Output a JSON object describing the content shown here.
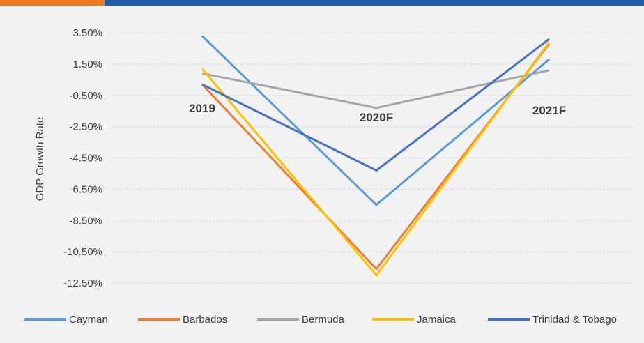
{
  "colors": {
    "accent_bar": "#f07c22",
    "main_bar": "#1e5fa8",
    "grid": "#d9d9d9"
  },
  "chart_data": {
    "type": "line",
    "ylabel": "GDP Growth Rate",
    "categories": [
      "2019",
      "2020F",
      "2021F"
    ],
    "ylim": [
      -12.5,
      3.5
    ],
    "yticks": [
      "3.50%",
      "1.50%",
      "-0.50%",
      "-2.50%",
      "-4.50%",
      "-6.50%",
      "-8.50%",
      "-10.50%",
      "-12.50%"
    ],
    "grid": true,
    "legend_position": "bottom",
    "series": [
      {
        "name": "Cayman",
        "color": "#5b9bd5",
        "values": [
          3.3,
          -7.5,
          1.8
        ]
      },
      {
        "name": "Barbados",
        "color": "#ed7d31",
        "values": [
          0.2,
          -11.6,
          2.8
        ]
      },
      {
        "name": "Bermuda",
        "color": "#a5a5a5",
        "values": [
          0.9,
          -1.3,
          1.1
        ]
      },
      {
        "name": "Jamaica",
        "color": "#ffc000",
        "values": [
          1.2,
          -12.0,
          2.9
        ]
      },
      {
        "name": "Trinidad & Tobago",
        "color": "#4472c4",
        "values": [
          0.2,
          -5.3,
          3.1
        ]
      }
    ]
  }
}
